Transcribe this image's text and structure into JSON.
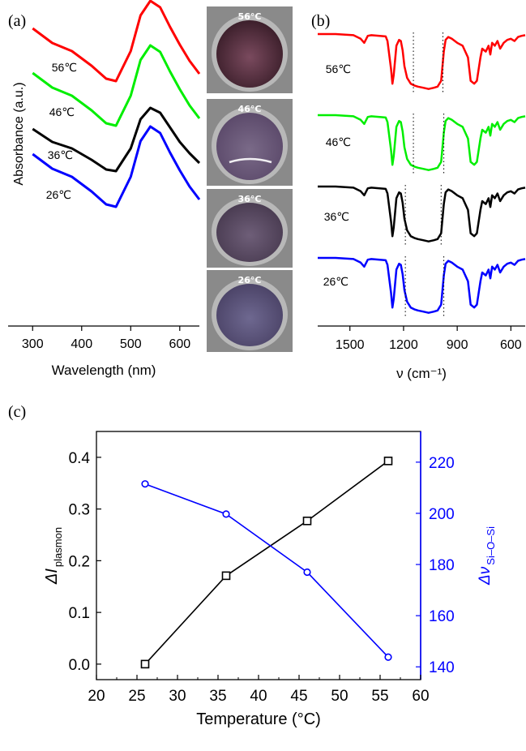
{
  "panels": {
    "a_label": "(a)",
    "b_label": "(b)",
    "c_label": "(c)"
  },
  "photos": {
    "labels": [
      "56°C",
      "46°C",
      "36°C",
      "26°C"
    ]
  },
  "chart_data": [
    {
      "id": "a",
      "type": "line",
      "xlabel": "Wavelength (nm)",
      "ylabel": "Absorbance (a.u.)",
      "xlim": [
        250,
        640
      ],
      "xticks": [
        300,
        400,
        500,
        600
      ],
      "peak_nm": 540,
      "series": [
        {
          "name": "56℃",
          "color": "#ff0000",
          "x": [
            300,
            340,
            380,
            420,
            450,
            470,
            500,
            520,
            540,
            560,
            580,
            600,
            620,
            640
          ],
          "y": [
            0.9,
            0.72,
            0.62,
            0.44,
            0.28,
            0.25,
            0.62,
            1.06,
            1.24,
            1.16,
            0.92,
            0.7,
            0.5,
            0.34
          ]
        },
        {
          "name": "46℃",
          "color": "#00ee00",
          "x": [
            300,
            340,
            380,
            420,
            450,
            470,
            500,
            520,
            540,
            560,
            580,
            600,
            620,
            640
          ],
          "y": [
            0.9,
            0.72,
            0.62,
            0.44,
            0.28,
            0.25,
            0.62,
            1.06,
            1.24,
            1.16,
            0.92,
            0.7,
            0.5,
            0.34
          ]
        },
        {
          "name": "36℃",
          "color": "#000000",
          "x": [
            300,
            340,
            380,
            420,
            450,
            470,
            500,
            520,
            540,
            560,
            580,
            600,
            620,
            640
          ],
          "y": [
            0.68,
            0.52,
            0.44,
            0.3,
            0.18,
            0.16,
            0.44,
            0.8,
            0.94,
            0.88,
            0.7,
            0.52,
            0.38,
            0.26
          ]
        },
        {
          "name": "26℃",
          "color": "#0000ff",
          "x": [
            300,
            340,
            380,
            420,
            450,
            470,
            500,
            520,
            540,
            560,
            580,
            600,
            620,
            640
          ],
          "y": [
            0.9,
            0.72,
            0.62,
            0.44,
            0.28,
            0.25,
            0.62,
            1.06,
            1.24,
            1.16,
            0.92,
            0.7,
            0.5,
            0.34
          ]
        }
      ]
    },
    {
      "id": "b",
      "type": "line",
      "xlabel": "ν (cm⁻¹)",
      "xlim": [
        1680,
        520
      ],
      "xticks": [
        1500,
        1200,
        900,
        600
      ],
      "series": [
        {
          "name": "56℃",
          "color": "#ff0000",
          "markers": [
            1145,
            980
          ],
          "x": [
            1680,
            1580,
            1480,
            1440,
            1420,
            1400,
            1380,
            1300,
            1290,
            1270,
            1262,
            1255,
            1240,
            1225,
            1215,
            1205,
            1195,
            1180,
            1160,
            1140,
            1120,
            1090,
            1060,
            1030,
            1010,
            990,
            975,
            965,
            950,
            930,
            900,
            870,
            840,
            825,
            805,
            790,
            770,
            760,
            740,
            725,
            715,
            705,
            690,
            675,
            660,
            640,
            620,
            600,
            580,
            560,
            540,
            520
          ],
          "y": [
            0,
            0,
            0.02,
            0.08,
            0.15,
            0.03,
            0.02,
            0.04,
            0.12,
            0.6,
            0.85,
            0.7,
            0.2,
            0.1,
            0.12,
            0.28,
            0.55,
            0.75,
            0.85,
            0.88,
            0.9,
            0.92,
            0.94,
            0.92,
            0.9,
            0.8,
            0.3,
            0.1,
            0.05,
            0.08,
            0.15,
            0.2,
            0.4,
            0.8,
            0.85,
            0.8,
            0.4,
            0.25,
            0.3,
            0.2,
            0.35,
            0.15,
            0.2,
            0.12,
            0.25,
            0.15,
            0.1,
            0.08,
            0.12,
            0.05,
            0.03,
            0.02
          ]
        },
        {
          "name": "46℃",
          "color": "#00ee00",
          "markers": [
            1145,
            975
          ],
          "x": [
            1680,
            1580,
            1480,
            1440,
            1420,
            1400,
            1380,
            1300,
            1290,
            1270,
            1262,
            1255,
            1240,
            1225,
            1215,
            1205,
            1195,
            1180,
            1160,
            1140,
            1120,
            1090,
            1060,
            1030,
            1010,
            990,
            975,
            965,
            950,
            930,
            900,
            870,
            840,
            825,
            805,
            790,
            770,
            760,
            740,
            725,
            715,
            705,
            690,
            675,
            660,
            640,
            620,
            600,
            580,
            560,
            540,
            520
          ],
          "y": [
            0,
            0,
            0.02,
            0.08,
            0.15,
            0.03,
            0.02,
            0.04,
            0.12,
            0.6,
            0.85,
            0.7,
            0.2,
            0.1,
            0.12,
            0.28,
            0.55,
            0.75,
            0.85,
            0.88,
            0.9,
            0.92,
            0.94,
            0.92,
            0.9,
            0.8,
            0.3,
            0.1,
            0.05,
            0.08,
            0.15,
            0.2,
            0.4,
            0.8,
            0.85,
            0.8,
            0.4,
            0.25,
            0.3,
            0.2,
            0.35,
            0.15,
            0.2,
            0.12,
            0.25,
            0.15,
            0.1,
            0.08,
            0.12,
            0.05,
            0.03,
            0.02
          ]
        },
        {
          "name": "36℃",
          "color": "#000000",
          "markers": [
            1190,
            990
          ],
          "x": [
            1680,
            1580,
            1480,
            1440,
            1420,
            1400,
            1380,
            1300,
            1290,
            1270,
            1262,
            1255,
            1240,
            1225,
            1215,
            1205,
            1195,
            1180,
            1160,
            1140,
            1120,
            1090,
            1060,
            1030,
            1010,
            990,
            975,
            965,
            950,
            930,
            900,
            870,
            840,
            825,
            805,
            790,
            770,
            760,
            740,
            725,
            715,
            705,
            690,
            675,
            660,
            640,
            620,
            600,
            580,
            560,
            540,
            520
          ],
          "y": [
            0,
            0,
            0.02,
            0.08,
            0.15,
            0.03,
            0.02,
            0.04,
            0.12,
            0.6,
            0.85,
            0.7,
            0.2,
            0.1,
            0.12,
            0.28,
            0.55,
            0.75,
            0.85,
            0.88,
            0.9,
            0.92,
            0.94,
            0.92,
            0.9,
            0.8,
            0.3,
            0.1,
            0.05,
            0.08,
            0.15,
            0.2,
            0.4,
            0.8,
            0.85,
            0.8,
            0.4,
            0.25,
            0.3,
            0.2,
            0.35,
            0.15,
            0.2,
            0.12,
            0.25,
            0.15,
            0.1,
            0.08,
            0.12,
            0.05,
            0.03,
            0.02
          ]
        },
        {
          "name": "26℃",
          "color": "#0000ff",
          "markers": [
            1190,
            975
          ],
          "x": [
            1680,
            1580,
            1480,
            1440,
            1420,
            1400,
            1380,
            1300,
            1290,
            1270,
            1262,
            1255,
            1240,
            1225,
            1215,
            1205,
            1195,
            1180,
            1160,
            1140,
            1120,
            1090,
            1060,
            1030,
            1010,
            990,
            975,
            965,
            950,
            930,
            900,
            870,
            840,
            825,
            805,
            790,
            770,
            760,
            740,
            725,
            715,
            705,
            690,
            675,
            660,
            640,
            620,
            600,
            580,
            560,
            540,
            520
          ],
          "y": [
            0,
            0,
            0.02,
            0.08,
            0.15,
            0.03,
            0.02,
            0.04,
            0.12,
            0.6,
            0.85,
            0.7,
            0.2,
            0.1,
            0.12,
            0.28,
            0.55,
            0.75,
            0.85,
            0.88,
            0.9,
            0.92,
            0.94,
            0.92,
            0.9,
            0.8,
            0.3,
            0.1,
            0.05,
            0.08,
            0.15,
            0.2,
            0.4,
            0.8,
            0.85,
            0.8,
            0.4,
            0.25,
            0.3,
            0.2,
            0.35,
            0.15,
            0.2,
            0.12,
            0.25,
            0.15,
            0.1,
            0.08,
            0.12,
            0.05,
            0.03,
            0.02
          ]
        }
      ]
    },
    {
      "id": "c",
      "type": "line",
      "xlabel": "Temperature (°C)",
      "ylabel": "ΔI plasmon",
      "ylabel_main": "ΔI",
      "ylabel_sub": "plasmon",
      "y2label_main": "Δν",
      "y2label_sub": "Si–O–Si",
      "xlim": [
        20,
        60
      ],
      "ylim": [
        -0.03,
        0.45
      ],
      "y2lim": [
        135,
        232
      ],
      "xticks": [
        20,
        25,
        30,
        35,
        40,
        45,
        50,
        55,
        60
      ],
      "yticks": [
        "0.0",
        "0.1",
        "0.2",
        "0.3",
        "0.4"
      ],
      "y2ticks": [
        140,
        160,
        180,
        200,
        220
      ],
      "x": [
        26,
        36,
        46,
        56
      ],
      "series": [
        {
          "name": "ΔI plasmon",
          "color": "#000000",
          "marker": "square",
          "axis": "left",
          "values": [
            0.0,
            0.171,
            0.277,
            0.393
          ]
        },
        {
          "name": "Δν Si–O–Si",
          "color": "#0000ff",
          "marker": "circle",
          "axis": "right",
          "values": [
            211.5,
            199.7,
            177.0,
            143.8
          ]
        }
      ]
    }
  ]
}
